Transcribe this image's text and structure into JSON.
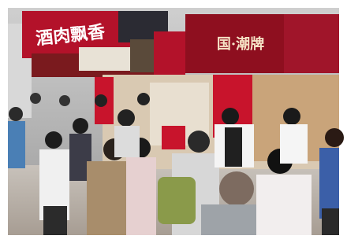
{
  "signs": [
    {
      "text": "酒肉飘香"
    },
    {
      "text": "国·潮牌"
    }
  ]
}
